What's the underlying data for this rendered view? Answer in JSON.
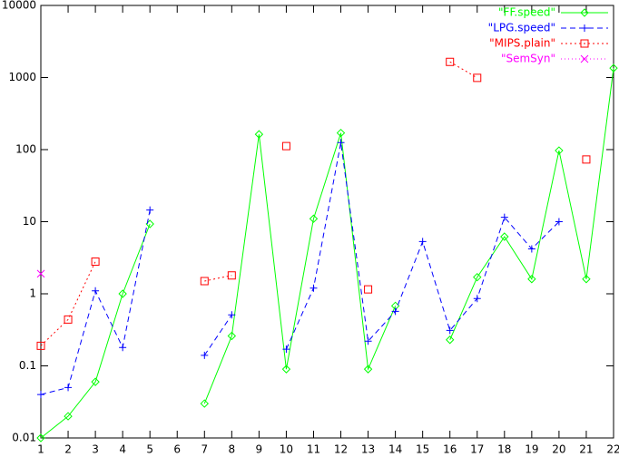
{
  "chart_data": {
    "type": "line",
    "x": [
      1,
      2,
      3,
      4,
      5,
      6,
      7,
      8,
      9,
      10,
      11,
      12,
      13,
      14,
      15,
      16,
      17,
      18,
      19,
      20,
      21,
      22
    ],
    "series": [
      {
        "name": "\"FF.speed\"",
        "color": "#00ff00",
        "dash": "none",
        "marker": "diamond",
        "values": [
          0.01,
          0.02,
          0.06,
          1.0,
          9.3,
          null,
          0.03,
          0.26,
          163,
          0.09,
          11,
          170,
          0.09,
          0.68,
          null,
          0.23,
          1.7,
          6.2,
          1.6,
          97,
          1.6,
          1350
        ]
      },
      {
        "name": "\"LPG.speed\"",
        "color": "#0000ff",
        "dash": "6,4",
        "marker": "plus",
        "values": [
          0.04,
          0.05,
          1.1,
          0.18,
          14.5,
          null,
          0.14,
          0.51,
          null,
          0.17,
          1.2,
          125,
          0.22,
          0.57,
          5.3,
          0.31,
          0.86,
          11.5,
          4.2,
          10,
          null,
          null
        ]
      },
      {
        "name": "\"MIPS.plain\"",
        "color": "#ff0000",
        "dash": "2,3",
        "marker": "square",
        "values": [
          0.19,
          0.44,
          2.8,
          null,
          null,
          null,
          1.5,
          1.8,
          null,
          112,
          null,
          null,
          1.15,
          null,
          null,
          1650,
          990,
          null,
          null,
          null,
          73,
          null
        ]
      },
      {
        "name": "\"SemSyn\"",
        "color": "#ff00ff",
        "dash": "1,3",
        "marker": "cross",
        "values": [
          1.9,
          null,
          null,
          null,
          null,
          null,
          null,
          null,
          null,
          null,
          null,
          null,
          null,
          null,
          null,
          null,
          null,
          null,
          null,
          null,
          null,
          null
        ]
      }
    ],
    "xlim": [
      1,
      22
    ],
    "xticks": [
      1,
      2,
      3,
      4,
      5,
      6,
      7,
      8,
      9,
      10,
      11,
      12,
      13,
      14,
      15,
      16,
      17,
      18,
      19,
      20,
      21,
      22
    ],
    "ylim": [
      0.01,
      10000
    ],
    "yticks": [
      0.01,
      0.1,
      1,
      10,
      100,
      1000,
      10000
    ],
    "log_y": true,
    "legend": "top-right"
  }
}
